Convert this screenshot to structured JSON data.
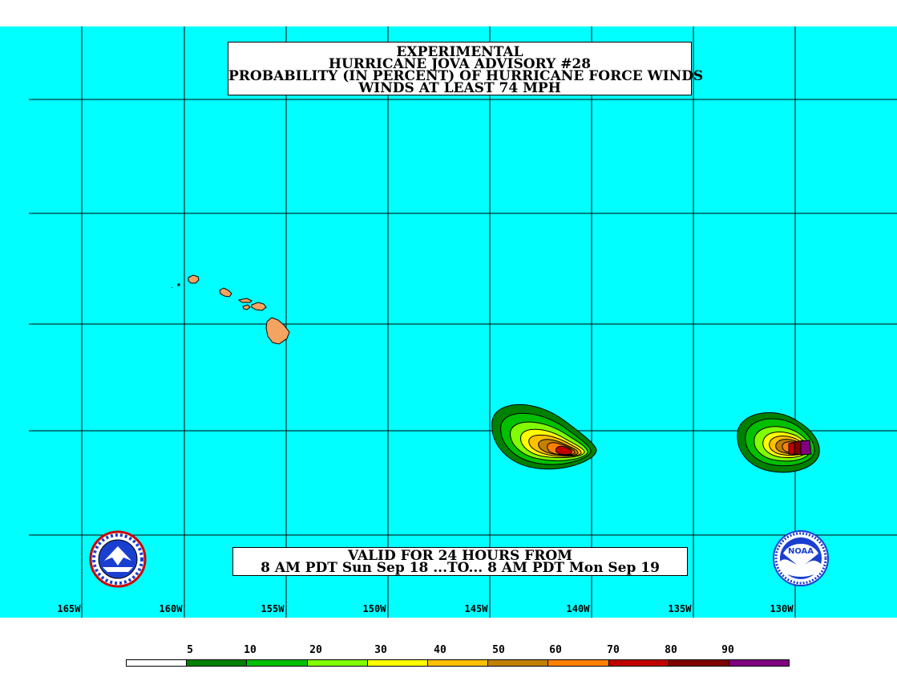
{
  "title": {
    "line1": "EXPERIMENTAL",
    "line2": "HURRICANE JOVA ADVISORY #28",
    "line3": "PROBABILITY (IN PERCENT) OF HURRICANE FORCE WINDS",
    "line4": "WINDS AT LEAST 74 MPH"
  },
  "valid": {
    "line1": "VALID FOR 24 HOURS FROM",
    "line2": "8 AM PDT Sun Sep 18 ...TO... 8 AM PDT Mon Sep 19"
  },
  "longitudes": [
    "165W",
    "160W",
    "155W",
    "150W",
    "145W",
    "140W",
    "135W",
    "130W"
  ],
  "legend": {
    "ticks": [
      "5",
      "10",
      "20",
      "30",
      "40",
      "50",
      "60",
      "70",
      "80",
      "90"
    ],
    "colors": [
      "#ffffff",
      "#008000",
      "#00c000",
      "#80ff00",
      "#ffff00",
      "#ffc000",
      "#c08000",
      "#ff8000",
      "#c00000",
      "#800000",
      "#800080"
    ]
  },
  "colors": {
    "ocean": "#00ffff",
    "land": "#f4a460",
    "grid": "#000000"
  },
  "logos": {
    "left": "nws-logo",
    "right": "noaa-logo"
  },
  "noaa_text": "NOAA"
}
